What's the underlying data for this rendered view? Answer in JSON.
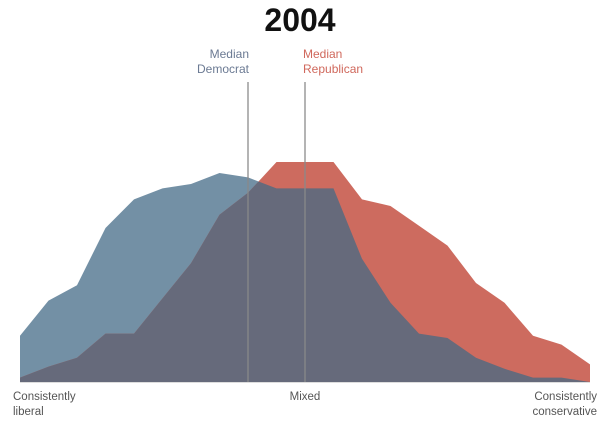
{
  "chart_data": {
    "type": "area",
    "title": "2004",
    "x_categories_count": 21,
    "x_tick_labels": [
      {
        "position": 0,
        "label": "Consistently liberal"
      },
      {
        "position": 10,
        "label": "Mixed"
      },
      {
        "position": 20,
        "label": "Consistently conservative"
      }
    ],
    "series": [
      {
        "name": "Democrat",
        "color": "#7390a5",
        "values": [
          21,
          37,
          44,
          70,
          83,
          88,
          90,
          95,
          93,
          88,
          88,
          88,
          56,
          36,
          22,
          20,
          11,
          6,
          2,
          2,
          0
        ]
      },
      {
        "name": "Republican",
        "color": "#cd6b5f",
        "values": [
          2,
          7,
          11,
          22,
          22,
          38,
          54,
          76,
          86,
          100,
          100,
          100,
          83,
          80,
          71,
          62,
          45,
          36,
          21,
          17,
          8
        ]
      }
    ],
    "overlap_color": "#666a7b",
    "medians": [
      {
        "label_line1": "Median",
        "label_line2": "Democrat",
        "position": 8,
        "color": "#6b7a93"
      },
      {
        "label_line1": "Median",
        "label_line2": "Republican",
        "position": 10,
        "color": "#d0685c"
      }
    ],
    "grid": false,
    "legend": "none"
  }
}
